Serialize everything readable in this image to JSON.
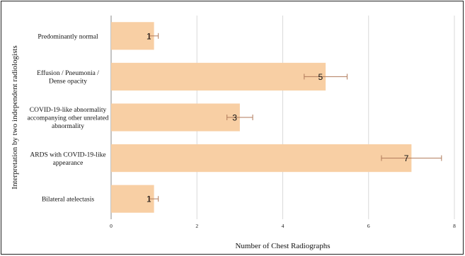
{
  "chart_data": {
    "type": "bar",
    "orientation": "horizontal",
    "categories": [
      "Predominantly normal",
      "Effusion / Pneumonia / Dense opacity",
      "COVID-19-like abnormality accompanying other unrelated abnormality",
      "ARDS with COVID-19-like appearance",
      "Bilateral atelectasis"
    ],
    "category_lines": [
      [
        "Predominantly normal"
      ],
      [
        "Effusion / Pneumonia /",
        "Dense opacity"
      ],
      [
        "COVID-19-like abnormality",
        "accompanying other unrelated",
        "abnormality"
      ],
      [
        "ARDS with COVID-19-like",
        "appearance"
      ],
      [
        "Bilateral atelectasis"
      ]
    ],
    "values": [
      1,
      5,
      3,
      7,
      1
    ],
    "data_labels": [
      "1",
      "5",
      "3",
      "7",
      "1"
    ],
    "error_low": [
      0.9,
      4.5,
      2.7,
      6.3,
      0.9
    ],
    "error_high": [
      1.1,
      5.5,
      3.3,
      7.7,
      1.1
    ],
    "xlim": [
      0,
      8
    ],
    "x_ticks": [
      "0",
      "2",
      "4",
      "6",
      "8"
    ],
    "xlabel": "Number of Chest Radiographs",
    "ylabel": "Interpretation by two independent radiologists",
    "grid": true,
    "bar_color": "#f8cfa4",
    "error_color": "#b07a5a"
  }
}
